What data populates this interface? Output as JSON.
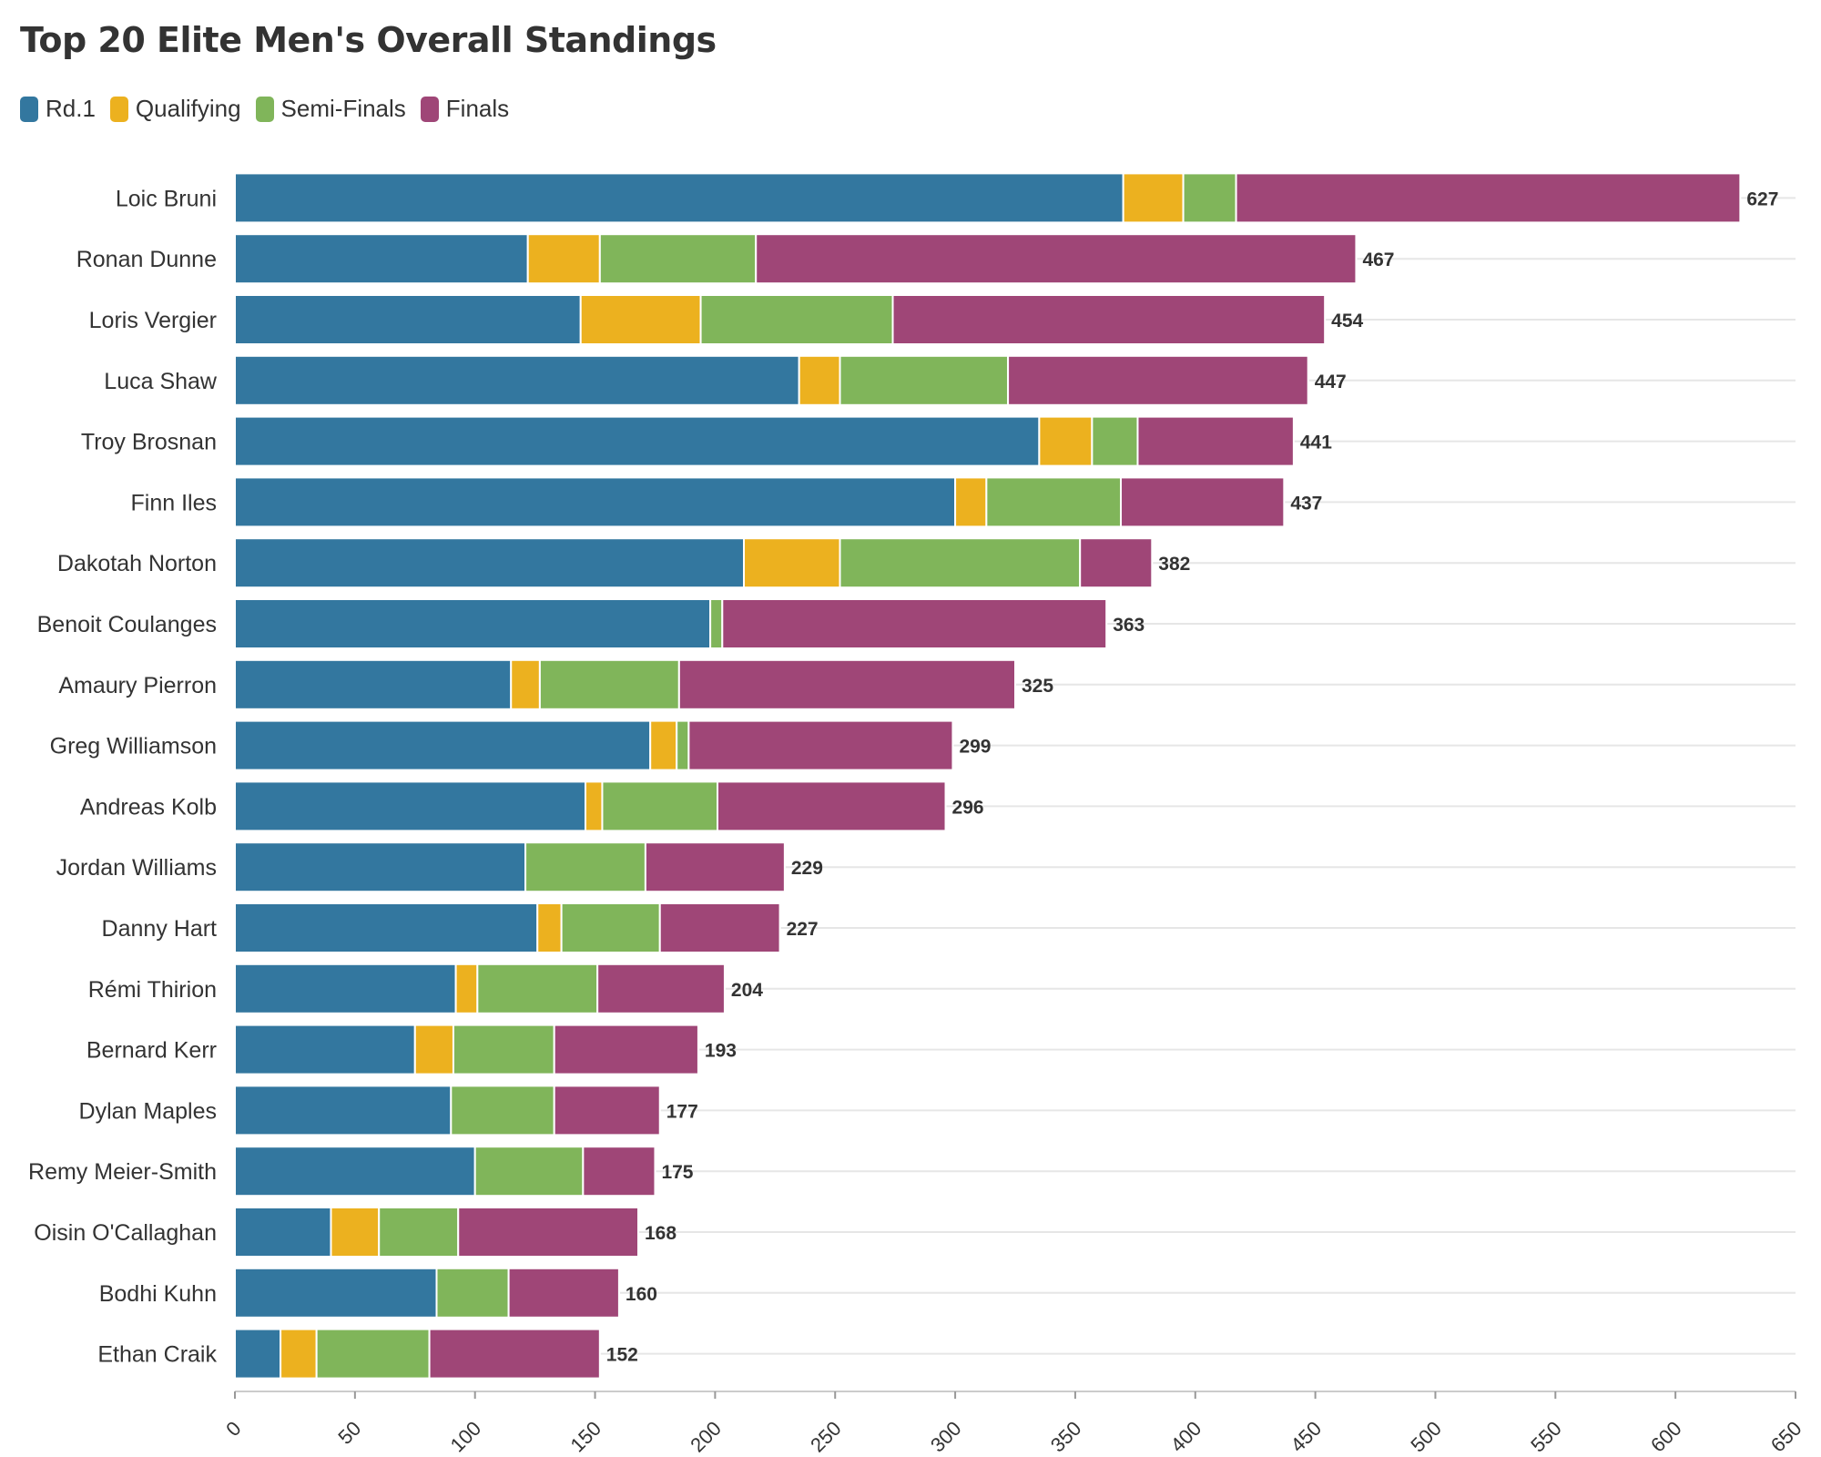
{
  "chart_data": {
    "type": "bar",
    "orientation": "horizontal",
    "stacked": true,
    "title": "Top 20 Elite Men's Overall Standings",
    "categories": [
      "Loic Bruni",
      "Ronan Dunne",
      "Loris Vergier",
      "Luca Shaw",
      "Troy Brosnan",
      "Finn Iles",
      "Dakotah Norton",
      "Benoit Coulanges",
      "Amaury Pierron",
      "Greg Williamson",
      "Andreas Kolb",
      "Jordan Williams",
      "Danny Hart",
      "Rémi Thirion",
      "Bernard Kerr",
      "Dylan Maples",
      "Remy Meier-Smith",
      "Oisin O'Callaghan",
      "Bodhi Kuhn",
      "Ethan Craik"
    ],
    "series": [
      {
        "name": "Rd.1",
        "color": "#33779f",
        "values": [
          370,
          122,
          144,
          235,
          335,
          300,
          212,
          198,
          115,
          173,
          146,
          121,
          126,
          92,
          75,
          90,
          100,
          40,
          84,
          19
        ]
      },
      {
        "name": "Qualifying",
        "color": "#ecb11f",
        "values": [
          25,
          30,
          50,
          17,
          22,
          13,
          40,
          0,
          12,
          11,
          7,
          0,
          10,
          9,
          16,
          0,
          0,
          20,
          0,
          15
        ]
      },
      {
        "name": "Semi-Finals",
        "color": "#80b55a",
        "values": [
          22,
          65,
          80,
          70,
          19,
          56,
          100,
          5,
          58,
          5,
          48,
          50,
          41,
          50,
          42,
          43,
          45,
          33,
          30,
          47
        ]
      },
      {
        "name": "Finals",
        "color": "#9f4677",
        "values": [
          210,
          250,
          180,
          125,
          65,
          68,
          30,
          160,
          140,
          110,
          95,
          58,
          50,
          53,
          60,
          44,
          30,
          75,
          46,
          71
        ]
      }
    ],
    "totals": [
      627,
      467,
      454,
      447,
      441,
      437,
      382,
      363,
      325,
      299,
      296,
      229,
      227,
      204,
      193,
      177,
      175,
      168,
      160,
      152
    ],
    "xlim": [
      0,
      650
    ],
    "xticks": [
      0,
      50,
      100,
      150,
      200,
      250,
      300,
      350,
      400,
      450,
      500,
      550,
      600,
      650
    ],
    "grid": true,
    "legend_position": "top-left"
  }
}
